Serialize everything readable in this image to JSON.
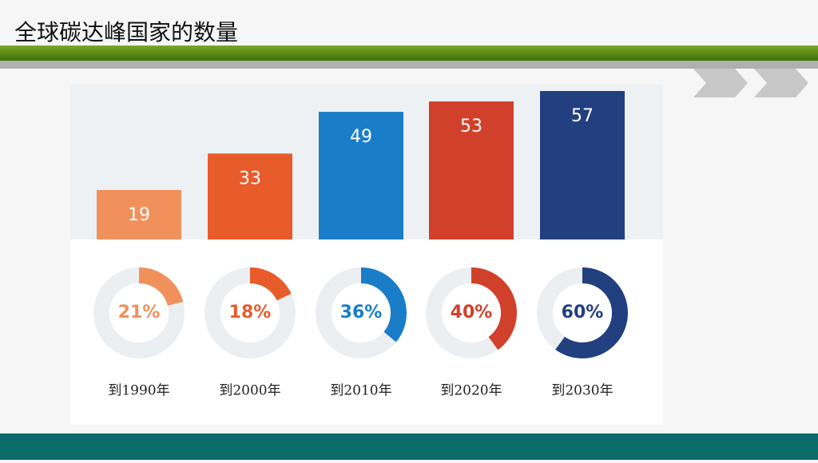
{
  "chart_data": [
    {
      "type": "bar",
      "title": "全球碳达峰国家的数量",
      "categories": [
        "到1990年",
        "到2000年",
        "到2010年",
        "到2020年",
        "到2030年"
      ],
      "values": [
        19,
        33,
        49,
        53,
        57
      ],
      "colors": [
        "#f0915c",
        "#e85b2b",
        "#1a7dc8",
        "#d1402a",
        "#223f80"
      ]
    },
    {
      "type": "donut",
      "values": [
        21,
        18,
        36,
        40,
        60
      ],
      "value_labels": [
        "21%",
        "18%",
        "36%",
        "40%",
        "60%"
      ],
      "colors": [
        "#f0915c",
        "#e85b2b",
        "#1a7dc8",
        "#d1402a",
        "#223f80"
      ]
    }
  ]
}
